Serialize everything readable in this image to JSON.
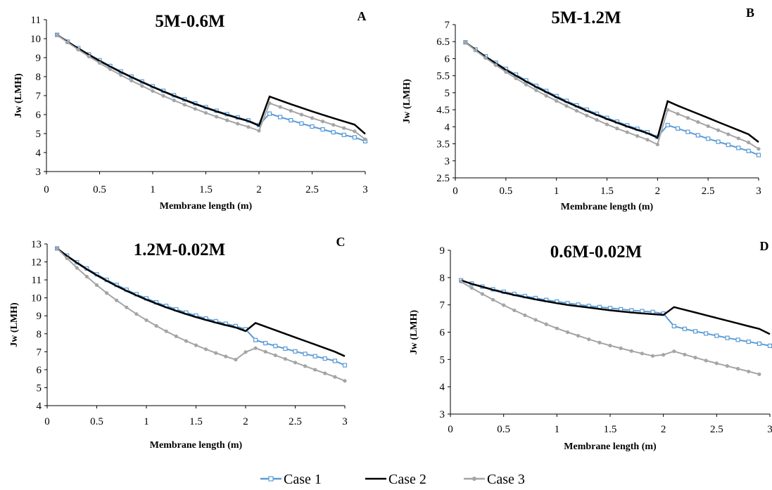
{
  "colors": {
    "case1": "#5b9bd5",
    "case2": "#000000",
    "case3": "#a5a5a5",
    "axis": "#000000"
  },
  "legend": [
    "Case 1",
    "Case 2",
    "Case 3"
  ],
  "chart_data": [
    {
      "type": "line",
      "title": "5M-0.6M",
      "panel_label": "A",
      "xlabel": "Membrane length (m)",
      "ylabel": "Jw (LMH)",
      "xlim": [
        0,
        3
      ],
      "ylim": [
        3,
        11
      ],
      "xticks": [
        "0",
        "0.5",
        "1",
        "1.5",
        "2",
        "2.5",
        "3"
      ],
      "yticks": [
        "3",
        "4",
        "5",
        "6",
        "7",
        "8",
        "9",
        "10",
        "11"
      ],
      "grid": false,
      "legend_position": "bottom",
      "series": [
        {
          "name": "Case 1",
          "x": [
            0.1,
            0.2,
            0.3,
            0.4,
            0.5,
            0.6,
            0.7,
            0.8,
            0.9,
            1.0,
            1.1,
            1.2,
            1.3,
            1.4,
            1.5,
            1.6,
            1.7,
            1.8,
            1.9,
            2.0,
            2.1,
            2.2,
            2.3,
            2.4,
            2.5,
            2.6,
            2.7,
            2.8,
            2.9,
            3.0
          ],
          "y": [
            10.2,
            9.84,
            9.5,
            9.17,
            8.86,
            8.56,
            8.27,
            8.0,
            7.74,
            7.49,
            7.25,
            7.02,
            6.8,
            6.59,
            6.39,
            6.2,
            6.02,
            5.85,
            5.69,
            5.45,
            6.05,
            5.87,
            5.7,
            5.53,
            5.37,
            5.22,
            5.07,
            4.93,
            4.8,
            4.6
          ]
        },
        {
          "name": "Case 2",
          "x": [
            0.1,
            0.2,
            0.3,
            0.4,
            0.5,
            0.6,
            0.7,
            0.8,
            0.9,
            1.0,
            1.1,
            1.2,
            1.3,
            1.4,
            1.5,
            1.6,
            1.7,
            1.8,
            1.9,
            2.0,
            2.1,
            2.2,
            2.3,
            2.4,
            2.5,
            2.6,
            2.7,
            2.8,
            2.9,
            3.0
          ],
          "y": [
            10.2,
            9.83,
            9.48,
            9.15,
            8.83,
            8.53,
            8.24,
            7.97,
            7.71,
            7.46,
            7.22,
            6.99,
            6.77,
            6.56,
            6.36,
            6.17,
            5.99,
            5.82,
            5.66,
            5.42,
            6.95,
            6.75,
            6.55,
            6.36,
            6.17,
            5.99,
            5.81,
            5.64,
            5.47,
            4.98
          ]
        },
        {
          "name": "Case 3",
          "x": [
            0.1,
            0.2,
            0.3,
            0.4,
            0.5,
            0.6,
            0.7,
            0.8,
            0.9,
            1.0,
            1.1,
            1.2,
            1.3,
            1.4,
            1.5,
            1.6,
            1.7,
            1.8,
            1.9,
            2.0,
            2.1,
            2.2,
            2.3,
            2.4,
            2.5,
            2.6,
            2.7,
            2.8,
            2.9,
            3.0
          ],
          "y": [
            10.2,
            9.8,
            9.42,
            9.06,
            8.72,
            8.39,
            8.08,
            7.79,
            7.51,
            7.24,
            6.99,
            6.75,
            6.52,
            6.3,
            6.09,
            5.89,
            5.7,
            5.52,
            5.35,
            5.15,
            6.6,
            6.4,
            6.2,
            6.0,
            5.82,
            5.64,
            5.46,
            5.29,
            5.12,
            4.7
          ]
        }
      ]
    },
    {
      "type": "line",
      "title": "5M-1.2M",
      "panel_label": "B",
      "xlabel": "Membrane length (m)",
      "ylabel": "Jw (LMH)",
      "xlim": [
        0,
        3
      ],
      "ylim": [
        2.5,
        7
      ],
      "xticks": [
        "0",
        "0.5",
        "1",
        "1.5",
        "2",
        "2.5",
        "3"
      ],
      "yticks": [
        "2.5",
        "3",
        "3.5",
        "4",
        "4.5",
        "5",
        "5.5",
        "6",
        "6.5",
        "7"
      ],
      "grid": false,
      "legend_position": "bottom",
      "series": [
        {
          "name": "Case 1",
          "x": [
            0.1,
            0.2,
            0.3,
            0.4,
            0.5,
            0.6,
            0.7,
            0.8,
            0.9,
            1.0,
            1.1,
            1.2,
            1.3,
            1.4,
            1.5,
            1.6,
            1.7,
            1.8,
            1.9,
            2.0,
            2.1,
            2.2,
            2.3,
            2.4,
            2.5,
            2.6,
            2.7,
            2.8,
            2.9,
            3.0
          ],
          "y": [
            6.48,
            6.27,
            6.07,
            5.88,
            5.7,
            5.53,
            5.36,
            5.2,
            5.05,
            4.9,
            4.76,
            4.63,
            4.5,
            4.38,
            4.26,
            4.15,
            4.04,
            3.94,
            3.84,
            3.7,
            4.05,
            3.95,
            3.85,
            3.75,
            3.65,
            3.56,
            3.47,
            3.38,
            3.29,
            3.17
          ]
        },
        {
          "name": "Case 2",
          "x": [
            0.1,
            0.2,
            0.3,
            0.4,
            0.5,
            0.6,
            0.7,
            0.8,
            0.9,
            1.0,
            1.1,
            1.2,
            1.3,
            1.4,
            1.5,
            1.6,
            1.7,
            1.8,
            1.9,
            2.0,
            2.1,
            2.2,
            2.3,
            2.4,
            2.5,
            2.6,
            2.7,
            2.8,
            2.9,
            3.0
          ],
          "y": [
            6.48,
            6.26,
            6.05,
            5.86,
            5.67,
            5.5,
            5.33,
            5.17,
            5.02,
            4.87,
            4.73,
            4.6,
            4.47,
            4.35,
            4.23,
            4.12,
            4.01,
            3.91,
            3.81,
            3.68,
            4.75,
            4.62,
            4.5,
            4.38,
            4.26,
            4.14,
            4.02,
            3.9,
            3.78,
            3.55
          ]
        },
        {
          "name": "Case 3",
          "x": [
            0.1,
            0.2,
            0.3,
            0.4,
            0.5,
            0.6,
            0.7,
            0.8,
            0.9,
            1.0,
            1.1,
            1.2,
            1.3,
            1.4,
            1.5,
            1.6,
            1.7,
            1.8,
            1.9,
            2.0,
            2.1,
            2.2,
            2.3,
            2.4,
            2.5,
            2.6,
            2.7,
            2.8,
            2.9,
            3.0
          ],
          "y": [
            6.48,
            6.24,
            6.02,
            5.81,
            5.61,
            5.42,
            5.24,
            5.07,
            4.91,
            4.76,
            4.61,
            4.47,
            4.33,
            4.2,
            4.07,
            3.95,
            3.84,
            3.73,
            3.62,
            3.48,
            4.5,
            4.38,
            4.26,
            4.14,
            4.02,
            3.9,
            3.78,
            3.66,
            3.54,
            3.35
          ]
        }
      ]
    },
    {
      "type": "line",
      "title": "1.2M-0.02M",
      "panel_label": "C",
      "xlabel": "Membrane length (m)",
      "ylabel": "Jw (LMH)",
      "xlim": [
        0,
        3
      ],
      "ylim": [
        4,
        13
      ],
      "xticks": [
        "0",
        "0.5",
        "1",
        "1.5",
        "2",
        "2.5",
        "3"
      ],
      "yticks": [
        "4",
        "5",
        "6",
        "7",
        "8",
        "9",
        "10",
        "11",
        "12",
        "13"
      ],
      "grid": false,
      "legend_position": "bottom",
      "series": [
        {
          "name": "Case 1",
          "x": [
            0.1,
            0.2,
            0.3,
            0.4,
            0.5,
            0.6,
            0.7,
            0.8,
            0.9,
            1.0,
            1.1,
            1.2,
            1.3,
            1.4,
            1.5,
            1.6,
            1.7,
            1.8,
            1.9,
            2.0,
            2.1,
            2.2,
            2.3,
            2.4,
            2.5,
            2.6,
            2.7,
            2.8,
            2.9,
            3.0
          ],
          "y": [
            12.75,
            12.35,
            11.98,
            11.63,
            11.31,
            11.0,
            10.72,
            10.45,
            10.2,
            9.97,
            9.75,
            9.55,
            9.36,
            9.18,
            9.01,
            8.85,
            8.7,
            8.56,
            8.43,
            8.25,
            7.65,
            7.48,
            7.32,
            7.17,
            7.02,
            6.88,
            6.75,
            6.62,
            6.49,
            6.25
          ]
        },
        {
          "name": "Case 2",
          "x": [
            0.1,
            0.2,
            0.3,
            0.4,
            0.5,
            0.6,
            0.7,
            0.8,
            0.9,
            1.0,
            1.1,
            1.2,
            1.3,
            1.4,
            1.5,
            1.6,
            1.7,
            1.8,
            1.9,
            2.0,
            2.1,
            2.2,
            2.3,
            2.4,
            2.5,
            2.6,
            2.7,
            2.8,
            2.9,
            3.0
          ],
          "y": [
            12.75,
            12.33,
            11.95,
            11.59,
            11.26,
            10.95,
            10.66,
            10.39,
            10.14,
            9.9,
            9.68,
            9.47,
            9.28,
            9.1,
            8.93,
            8.77,
            8.62,
            8.48,
            8.35,
            8.15,
            8.6,
            8.4,
            8.2,
            8.0,
            7.8,
            7.6,
            7.4,
            7.2,
            7.0,
            6.75
          ]
        },
        {
          "name": "Case 3",
          "x": [
            0.1,
            0.2,
            0.3,
            0.4,
            0.5,
            0.6,
            0.7,
            0.8,
            0.9,
            1.0,
            1.1,
            1.2,
            1.3,
            1.4,
            1.5,
            1.6,
            1.7,
            1.8,
            1.9,
            2.0,
            2.1,
            2.2,
            2.3,
            2.4,
            2.5,
            2.6,
            2.7,
            2.8,
            2.9,
            3.0
          ],
          "y": [
            12.75,
            12.2,
            11.67,
            11.18,
            10.71,
            10.27,
            9.86,
            9.47,
            9.1,
            8.76,
            8.44,
            8.14,
            7.86,
            7.6,
            7.36,
            7.14,
            6.93,
            6.74,
            6.56,
            6.98,
            7.2,
            7.0,
            6.8,
            6.6,
            6.4,
            6.2,
            6.0,
            5.8,
            5.6,
            5.38
          ]
        }
      ]
    },
    {
      "type": "line",
      "title": "0.6M-0.02M",
      "panel_label": "D",
      "xlabel": "Membrane length (m)",
      "ylabel": "Jw (LMH)",
      "xlim": [
        0,
        3
      ],
      "ylim": [
        3,
        9
      ],
      "xticks": [
        "0",
        "0.5",
        "1",
        "1.5",
        "2",
        "2.5",
        "3"
      ],
      "yticks": [
        "3",
        "4",
        "5",
        "6",
        "7",
        "8",
        "9"
      ],
      "grid": false,
      "legend_position": "bottom",
      "series": [
        {
          "name": "Case 1",
          "x": [
            0.1,
            0.2,
            0.3,
            0.4,
            0.5,
            0.6,
            0.7,
            0.8,
            0.9,
            1.0,
            1.1,
            1.2,
            1.3,
            1.4,
            1.5,
            1.6,
            1.7,
            1.8,
            1.9,
            2.0,
            2.1,
            2.2,
            2.3,
            2.4,
            2.5,
            2.6,
            2.7,
            2.8,
            2.9,
            3.0
          ],
          "y": [
            7.9,
            7.78,
            7.67,
            7.57,
            7.48,
            7.4,
            7.32,
            7.25,
            7.18,
            7.12,
            7.06,
            7.01,
            6.96,
            6.92,
            6.88,
            6.84,
            6.8,
            6.77,
            6.74,
            6.68,
            6.22,
            6.12,
            6.03,
            5.95,
            5.87,
            5.79,
            5.72,
            5.65,
            5.58,
            5.5
          ]
        },
        {
          "name": "Case 2",
          "x": [
            0.1,
            0.2,
            0.3,
            0.4,
            0.5,
            0.6,
            0.7,
            0.8,
            0.9,
            1.0,
            1.1,
            1.2,
            1.3,
            1.4,
            1.5,
            1.6,
            1.7,
            1.8,
            1.9,
            2.0,
            2.1,
            2.2,
            2.3,
            2.4,
            2.5,
            2.6,
            2.7,
            2.8,
            2.9,
            3.0
          ],
          "y": [
            7.9,
            7.77,
            7.66,
            7.55,
            7.45,
            7.36,
            7.28,
            7.2,
            7.13,
            7.06,
            7.0,
            6.95,
            6.9,
            6.85,
            6.8,
            6.76,
            6.72,
            6.69,
            6.66,
            6.63,
            6.92,
            6.82,
            6.72,
            6.62,
            6.52,
            6.42,
            6.32,
            6.22,
            6.12,
            5.93
          ]
        },
        {
          "name": "Case 3",
          "x": [
            0.1,
            0.2,
            0.3,
            0.4,
            0.5,
            0.6,
            0.7,
            0.8,
            0.9,
            1.0,
            1.1,
            1.2,
            1.3,
            1.4,
            1.5,
            1.6,
            1.7,
            1.8,
            1.9,
            2.0,
            2.1,
            2.2,
            2.3,
            2.4,
            2.5,
            2.6,
            2.7,
            2.8,
            2.9
          ],
          "y": [
            7.85,
            7.62,
            7.4,
            7.19,
            6.99,
            6.8,
            6.62,
            6.45,
            6.29,
            6.14,
            6.0,
            5.87,
            5.74,
            5.62,
            5.51,
            5.41,
            5.31,
            5.22,
            5.13,
            5.17,
            5.3,
            5.18,
            5.07,
            4.96,
            4.86,
            4.76,
            4.66,
            4.56,
            4.46
          ]
        }
      ]
    }
  ]
}
